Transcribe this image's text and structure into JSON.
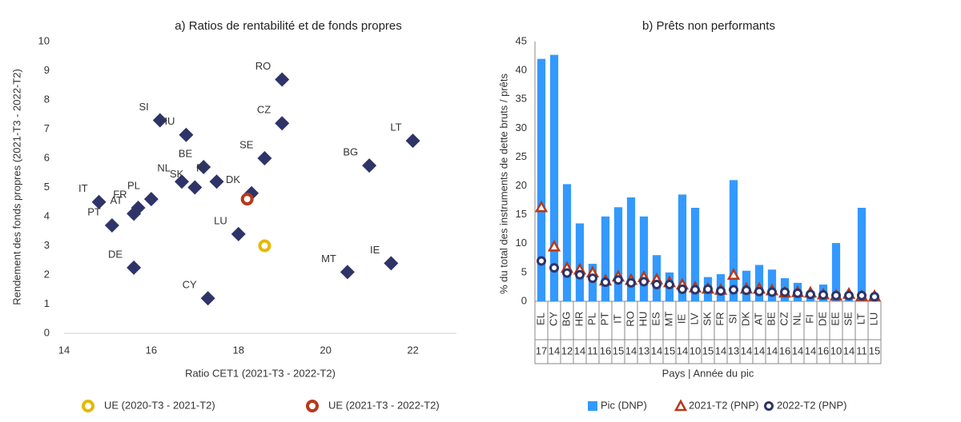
{
  "chart_data": [
    {
      "type": "scatter",
      "title": "a) Ratios de rentabilité et de fonds propres",
      "xlabel": "Ratio CET1 (2021-T3 - 2022-T2)",
      "ylabel": "Rendement des fonds propres (2021-T3 - 2022-T2)",
      "labels": [
        "RO",
        "CZ",
        "LT",
        "SI",
        "HU",
        "BE",
        "FI",
        "SE",
        "NL",
        "SK",
        "DK",
        "BG",
        "IT",
        "FR",
        "PL",
        "AT",
        "PT",
        "DE",
        "LU",
        "MT",
        "IE",
        "CY"
      ],
      "x": [
        19.0,
        19.0,
        22.0,
        16.2,
        16.8,
        17.2,
        17.5,
        18.6,
        16.7,
        17.0,
        18.3,
        21.0,
        14.8,
        15.7,
        16.0,
        15.6,
        15.1,
        15.6,
        18.0,
        20.5,
        21.5,
        17.3
      ],
      "y": [
        8.7,
        7.2,
        6.6,
        7.3,
        6.8,
        5.7,
        5.2,
        6.0,
        5.2,
        5.0,
        4.8,
        5.75,
        4.5,
        4.3,
        4.6,
        4.1,
        3.7,
        2.25,
        3.4,
        2.1,
        2.4,
        1.2
      ],
      "color": "#2e3468",
      "series": [
        {
          "name": "UE (2020-T3 - 2021-T2)",
          "color": "#e6b800",
          "x": [
            18.6
          ],
          "y": [
            3.0
          ]
        },
        {
          "name": "UE (2021-T3 - 2022-T2)",
          "color": "#b5391b",
          "x": [
            18.2
          ],
          "y": [
            4.6
          ]
        }
      ],
      "xlim": [
        14,
        23
      ],
      "xticks": [
        14,
        16,
        18,
        20,
        22
      ],
      "ylim": [
        0,
        10
      ],
      "yticks": [
        0,
        1,
        2,
        3,
        4,
        5,
        6,
        7,
        8,
        9,
        10
      ]
    },
    {
      "type": "bar",
      "title": "b) Prêts non performants",
      "xlabel": "Pays | Année du pic",
      "ylabel": "% du total des instruments de dette bruts / prêts",
      "categories": [
        "EL",
        "CY",
        "BG",
        "HR",
        "PL",
        "PT",
        "IT",
        "RO",
        "HU",
        "ES",
        "MT",
        "IE",
        "LV",
        "SK",
        "FR",
        "SI",
        "DK",
        "AT",
        "BE",
        "CZ",
        "NL",
        "FI",
        "DE",
        "EE",
        "SE",
        "LT",
        "LU"
      ],
      "peak_years": [
        "17",
        "14",
        "12",
        "14",
        "11",
        "16",
        "15",
        "14",
        "13",
        "14",
        "15",
        "14",
        "10",
        "15",
        "14",
        "13",
        "14",
        "14",
        "14",
        "16",
        "14",
        "14",
        "16",
        "10",
        "14",
        "11",
        "15"
      ],
      "series": [
        {
          "name": "Pic (DNP)",
          "color": "#3399ff",
          "values": [
            42,
            42.7,
            20.3,
            13.5,
            6.5,
            14.7,
            16.3,
            18,
            14.7,
            8,
            5,
            18.5,
            16.2,
            4.2,
            4.7,
            21,
            5.3,
            6.3,
            5.5,
            4,
            3.2,
            1.7,
            2.9,
            10.1,
            1.2,
            16.2,
            0.8
          ]
        },
        {
          "name": "2021-T2 (PNP)",
          "color": "#b5391b",
          "values": [
            16.3,
            9.5,
            5.8,
            5.5,
            5,
            3.6,
            4.3,
            3.7,
            4.2,
            3.8,
            3.3,
            2.9,
            2.4,
            2.2,
            2.0,
            4.6,
            2.2,
            2.2,
            1.9,
            1.5,
            1.6,
            1.5,
            1.2,
            1.0,
            1.3,
            0.9,
            0.9
          ]
        },
        {
          "name": "2022-T2 (PNP)",
          "color": "#2e3468",
          "values": [
            7,
            5.8,
            4.9,
            4.6,
            4,
            3.3,
            3.7,
            3.2,
            3.4,
            2.9,
            2.9,
            2.1,
            2.0,
            2.1,
            1.8,
            2.0,
            1.9,
            1.7,
            1.6,
            1.6,
            1.4,
            1.2,
            1.1,
            1.0,
            1.0,
            1.0,
            0.8
          ]
        }
      ],
      "ylim": [
        0,
        45
      ],
      "yticks": [
        0,
        5,
        10,
        15,
        20,
        25,
        30,
        35,
        40,
        45
      ]
    }
  ]
}
